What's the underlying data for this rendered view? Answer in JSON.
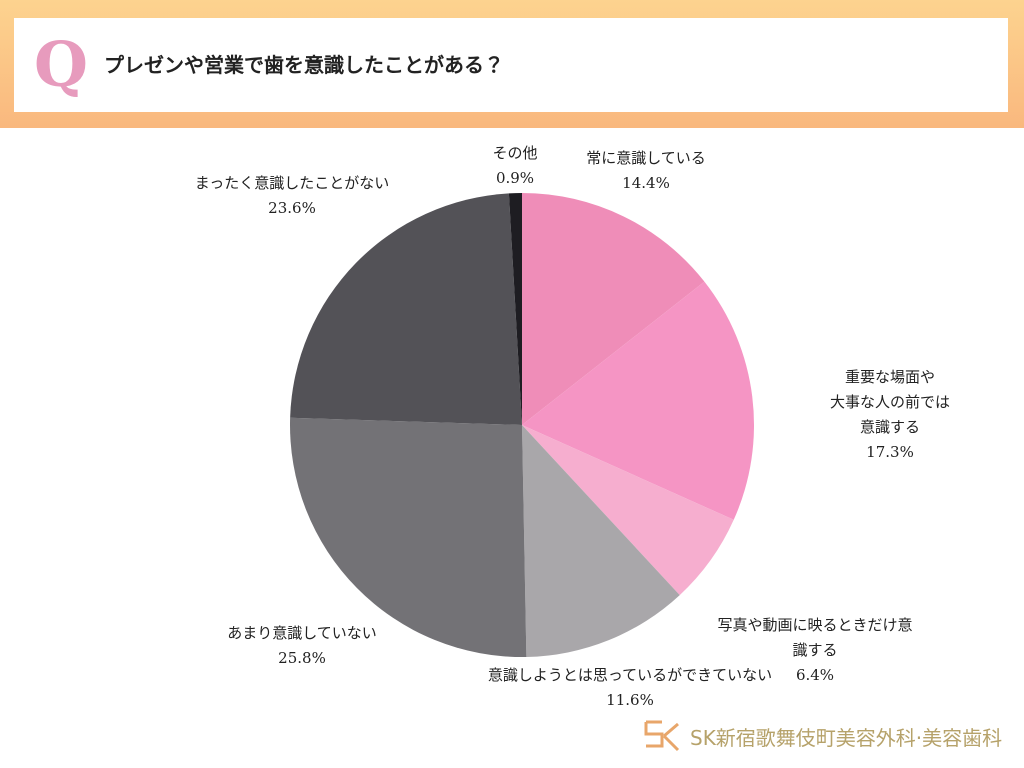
{
  "header": {
    "badge": "Q"
  },
  "chart_data": {
    "type": "pie",
    "title": "プレゼンや営業で歯を意識したことがある？",
    "categories": [
      "常に意識している",
      "重要な場面や\n大事な人の前では意識する",
      "写真や動画に映るときだけ意識する",
      "意識しようとは思っているができていない",
      "あまり意識していない",
      "まったく意識したことがない",
      "その他"
    ],
    "values": [
      14.4,
      17.3,
      6.4,
      11.6,
      25.8,
      23.6,
      0.9
    ],
    "value_labels": [
      "14.4%",
      "17.3%",
      "6.4%",
      "11.6%",
      "25.8%",
      "23.6%",
      "0.9%"
    ],
    "colors": [
      "#ef8db8",
      "#f595c4",
      "#f6aecf",
      "#a9a7aa",
      "#737276",
      "#535257",
      "#1e1d22"
    ]
  },
  "footer": {
    "logo": "SK新宿歌舞伎町美容外科·美容歯科"
  }
}
